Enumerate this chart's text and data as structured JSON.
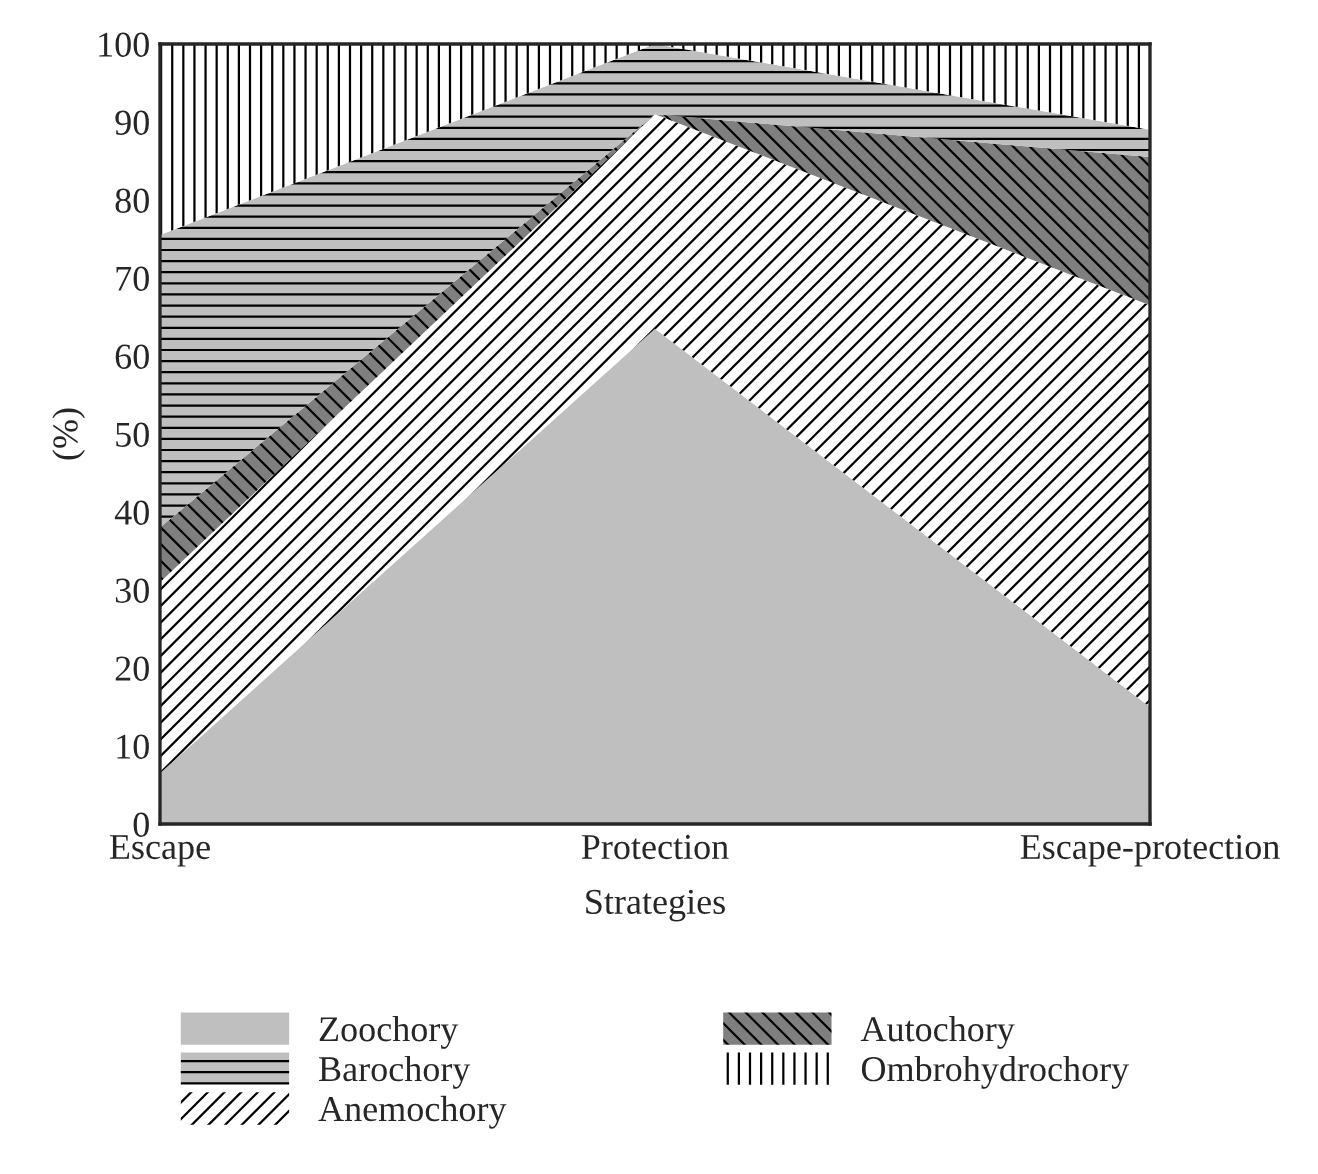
{
  "chart_data": {
    "type": "area",
    "stacked": true,
    "xlabel": "Strategies",
    "ylabel": "(%)",
    "categories": [
      "Escape",
      "Protection",
      "Escape-protection"
    ],
    "series": [
      {
        "name": "Zoochory",
        "color": "#bfbfbf",
        "values": [
          6.5,
          63.5,
          15
        ]
      },
      {
        "name": "Anemochory",
        "color": "#ffffff",
        "values": [
          24.5,
          27.5,
          51.5
        ]
      },
      {
        "name": "Autochory",
        "color": "#7f7f7f",
        "values": [
          7,
          0,
          19
        ]
      },
      {
        "name": "Barochory",
        "color": "#bfbfbf",
        "values": [
          37.5,
          9,
          3.5
        ]
      },
      {
        "name": "Ombrohydrochory",
        "color": "#ffffff",
        "values": [
          24.5,
          0,
          11
        ]
      }
    ],
    "ylim": [
      0,
      100
    ],
    "yticks": [
      0,
      10,
      20,
      30,
      40,
      50,
      60,
      70,
      80,
      90,
      100
    ],
    "legend": "bottom"
  }
}
